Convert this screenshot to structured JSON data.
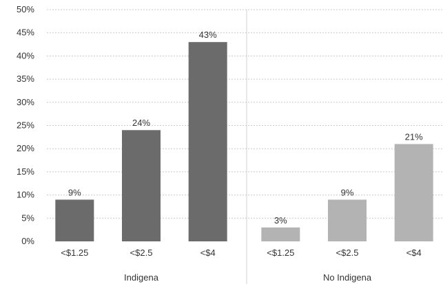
{
  "chart_data": {
    "type": "bar",
    "ylim": [
      0,
      50
    ],
    "yticks": [
      "0%",
      "5%",
      "10%",
      "15%",
      "20%",
      "25%",
      "30%",
      "35%",
      "40%",
      "45%",
      "50%"
    ],
    "grid": true,
    "groups": [
      {
        "name": "Indigena",
        "color": "#6b6b6b",
        "categories": [
          "<$1.25",
          "<$2.5",
          "<$4"
        ],
        "values": [
          9,
          24,
          43
        ],
        "labels": [
          "9%",
          "24%",
          "43%"
        ]
      },
      {
        "name": "No Indigena",
        "color": "#b3b3b3",
        "categories": [
          "<$1.25",
          "<$2.5",
          "<$4"
        ],
        "values": [
          3,
          9,
          21
        ],
        "labels": [
          "3%",
          "9%",
          "21%"
        ]
      }
    ]
  }
}
